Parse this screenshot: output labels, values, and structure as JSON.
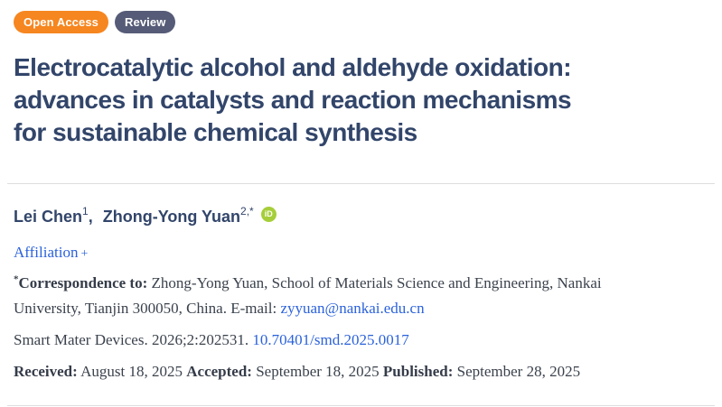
{
  "badges": {
    "open_access": "Open Access",
    "review": "Review"
  },
  "title": {
    "lines": [
      "Electrocatalytic alcohol and aldehyde oxidation:",
      "advances in catalysts and reaction mechanisms",
      "for sustainable chemical synthesis"
    ]
  },
  "authors": {
    "author1": {
      "name": "Lei Chen",
      "sup": "1"
    },
    "separator": ",",
    "author2": {
      "name": "Zhong-Yong Yuan",
      "sup": "2,*"
    },
    "orcid_icon": "iD"
  },
  "affiliation": {
    "label": "Affiliation",
    "toggle": "+"
  },
  "correspondence": {
    "sup": "*",
    "label": "Correspondence to:",
    "line1_rest": " Zhong-Yong Yuan, School of Materials Science and Engineering, Nankai",
    "line2": "University, Tianjin 300050, China. E-mail: ",
    "email": "zyyuan@nankai.edu.cn"
  },
  "citation": {
    "journal": "Smart Mater Devices. 2026;2:202531. ",
    "doi": "10.70401/smd.2025.0017"
  },
  "dates": {
    "received_label": "Received:",
    "received_value": " August 18, 2025 ",
    "accepted_label": "Accepted:",
    "accepted_value": " September 18, 2025 ",
    "published_label": "Published:",
    "published_value": " September 28, 2025"
  },
  "colors": {
    "accent_orange": "#F6861F",
    "badge_slate": "#565C77",
    "title_navy": "#32456A",
    "body_text": "#3B424D",
    "link_blue": "#2B62DB",
    "orcid_green": "#A6CE39",
    "divider_gray": "#DDDDDD"
  }
}
